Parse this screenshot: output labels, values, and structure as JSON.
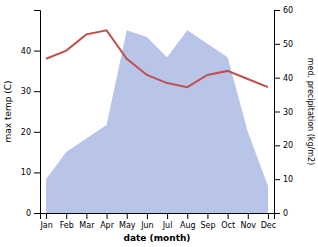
{
  "chart_data": {
    "type": "line",
    "xlabel": "date (month)",
    "ylabel": "max temp (C)",
    "y2label": "med. precipitation (kg/m2)",
    "categories": [
      "Jan",
      "Feb",
      "Mar",
      "Apr",
      "May",
      "Jun",
      "Jul",
      "Aug",
      "Sep",
      "Oct",
      "Nov",
      "Dec"
    ],
    "series": [
      {
        "type": "area",
        "axis": "y2",
        "color": "#b8c4e8",
        "values": [
          10,
          18,
          22,
          26,
          54,
          52,
          46,
          54,
          50,
          46,
          24,
          8
        ]
      },
      {
        "type": "line",
        "color": "#c0504d",
        "values": [
          38,
          40,
          44,
          45,
          38,
          34,
          32,
          31,
          34,
          35,
          33,
          31
        ]
      }
    ],
    "ylim": [
      0,
      50
    ],
    "yticks": [
      0,
      10,
      20,
      30,
      40
    ],
    "y2lim": [
      0,
      60
    ],
    "y2ticks": [
      0,
      10,
      20,
      30,
      40,
      50,
      60
    ]
  }
}
